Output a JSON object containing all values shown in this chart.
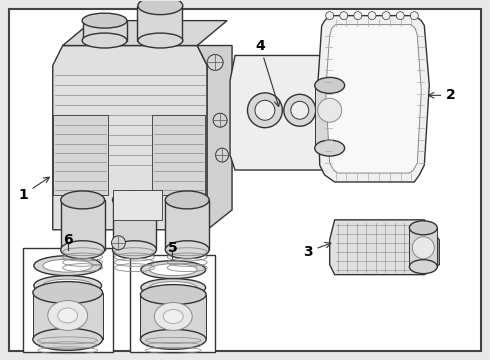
{
  "background_color": "#e8e8e8",
  "border_color": "#444444",
  "line_color": "#333333",
  "label_color": "#000000",
  "fig_width": 4.9,
  "fig_height": 3.6,
  "dpi": 100
}
